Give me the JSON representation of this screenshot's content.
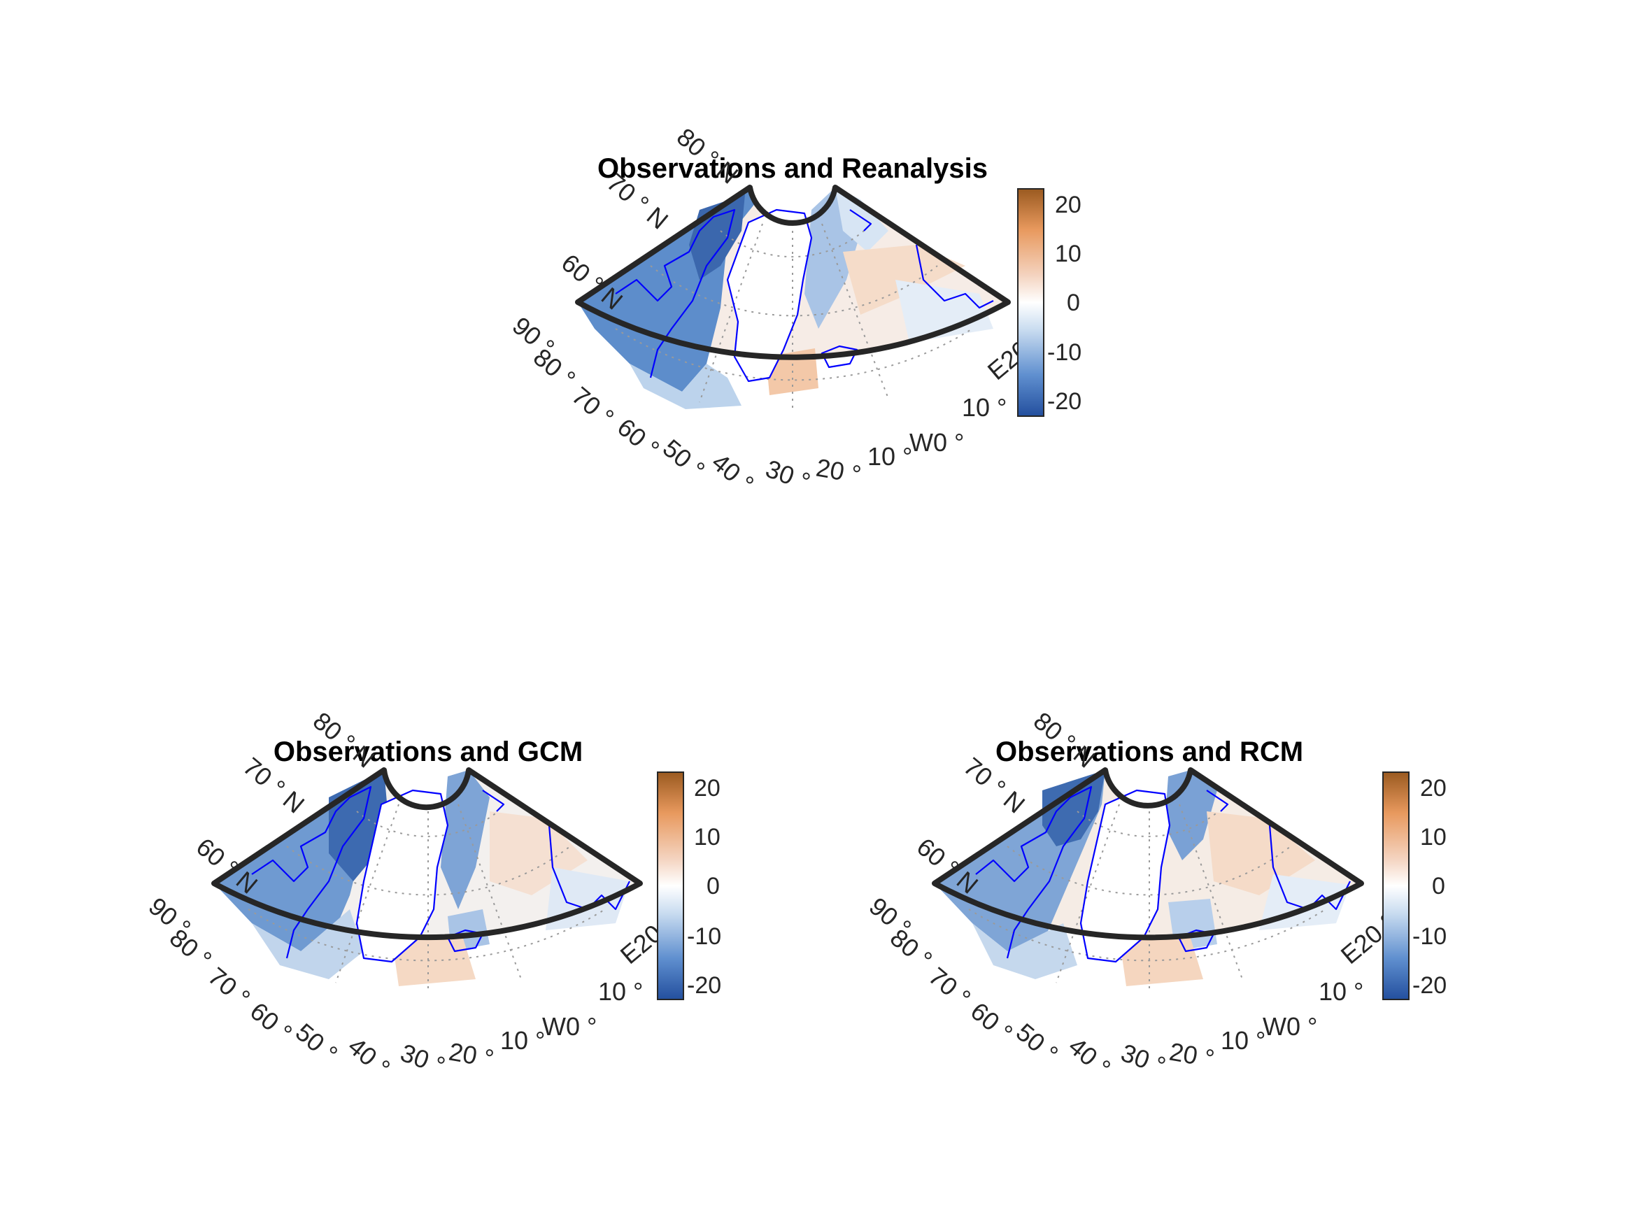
{
  "panels": [
    {
      "title": "Observations and Reanalysis",
      "lat_labels": [
        "60 ° N",
        "70 ° N",
        "80 ° N"
      ],
      "lon_labels": [
        "90 °",
        "80 °",
        "70 °",
        "60 °",
        "50 °",
        "40 °",
        "30 °",
        "20 °",
        "10 °",
        "W0 °",
        "10 °",
        "E20 °"
      ]
    },
    {
      "title": "Observations and GCM",
      "lat_labels": [
        "60 ° N",
        "70 ° N",
        "80 ° N"
      ],
      "lon_labels": [
        "90 °",
        "80 °",
        "70 °",
        "60 °",
        "50 °",
        "40 °",
        "30 °",
        "20 °",
        "10 °",
        "W0 °",
        "10 °",
        "E20 °"
      ]
    },
    {
      "title": "Observations and RCM",
      "lat_labels": [
        "60 ° N",
        "70 ° N",
        "80 ° N"
      ],
      "lon_labels": [
        "90 °",
        "80 °",
        "70 °",
        "60 °",
        "50 °",
        "40 °",
        "30 °",
        "20 °",
        "10 °",
        "W0 °",
        "10 °",
        "E20 °"
      ]
    }
  ],
  "colorbar": {
    "ticks": [
      "20",
      "10",
      "0",
      "-10",
      "-20"
    ],
    "range": [
      -23,
      23
    ],
    "colors": [
      "#234f9e",
      "#5f8fcf",
      "#c9dcf0",
      "#ffffff",
      "#f4d3bf",
      "#e8995e",
      "#9a5a20"
    ]
  },
  "map_colors": {
    "coastline": "#0000ff",
    "frame": "#262626",
    "land_mask": "#ffffff",
    "graticule": "#9a9a9a"
  }
}
